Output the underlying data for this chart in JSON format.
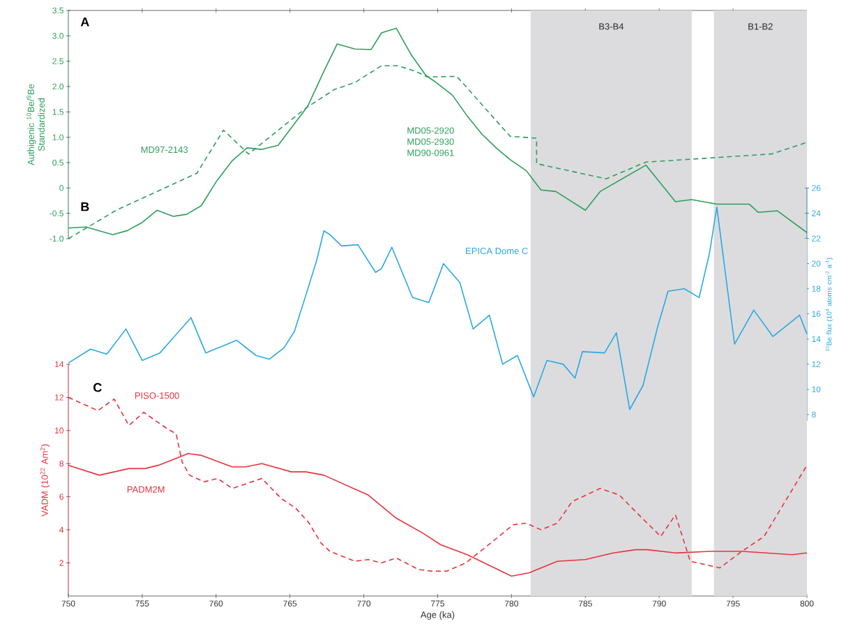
{
  "chart_data": [
    {
      "type": "line",
      "title": "A",
      "ylabel": "Authigenic $^{10}$Be/$^{9}$Be Standardized",
      "xlim": [
        750,
        800
      ],
      "xticks": [
        755,
        760,
        765,
        770,
        775,
        780,
        785,
        790,
        795
      ],
      "tick_labels": "y",
      "ylim": [
        -1,
        3.5
      ],
      "yticks": [
        {
          "value": -1,
          "label": "-1.0"
        },
        -0.5,
        0,
        0.5,
        {
          "value": 1,
          "label": "1.0"
        },
        1.5,
        {
          "value": 2,
          "label": "2.0"
        },
        2.5,
        {
          "value": 3,
          "label": "3.0"
        },
        3.5
      ],
      "bands": [
        {
          "axis": "x",
          "from": 781.3,
          "to": 792.2,
          "label": "B3-B4",
          "color": "#dcdcdf"
        },
        {
          "axis": "x",
          "from": 793.7,
          "to": 800,
          "label": "B1-B2",
          "color": "#dcdcdf"
        }
      ],
      "series": [
        {
          "name": "MD97-2143",
          "color": "#2e9e5b",
          "line_style": "dashed",
          "x": [
            750,
            753.3,
            756,
            758.7,
            760.5,
            762.2,
            766.1,
            768,
            769.4,
            771.2,
            772.3,
            773.5,
            774.3,
            776.3,
            779.9,
            781.7,
            781.7,
            786.4,
            789.1,
            797.6,
            800
          ],
          "values": [
            -1.0,
            -0.43,
            -0.07,
            0.29,
            1.14,
            0.67,
            1.58,
            1.94,
            2.08,
            2.41,
            2.41,
            2.3,
            2.19,
            2.2,
            1.02,
            0.98,
            0.48,
            0.18,
            0.51,
            0.67,
            0.9
          ]
        },
        {
          "name": "MD05-2920 MD05-2930 MD90-0961",
          "color": "#2e9e5b",
          "line_style": "solid",
          "x": [
            750,
            751.2,
            753,
            754,
            755,
            756,
            757.1,
            758,
            759,
            760,
            761.1,
            762.1,
            763.1,
            764.2,
            766.2,
            767.3,
            768.2,
            769.4,
            770.5,
            771.2,
            772.2,
            773.2,
            774.2,
            774.8,
            776,
            777,
            778,
            779,
            779.9,
            781,
            782,
            783,
            785,
            786,
            789.1,
            791.1,
            792.2,
            793.9,
            796.1,
            796.7,
            798,
            800
          ],
          "values": [
            -0.79,
            -0.77,
            -0.92,
            -0.84,
            -0.68,
            -0.44,
            -0.56,
            -0.52,
            -0.35,
            0.12,
            0.54,
            0.79,
            0.76,
            0.84,
            1.61,
            2.3,
            2.84,
            2.74,
            2.73,
            3.06,
            3.15,
            2.63,
            2.22,
            2.1,
            1.83,
            1.42,
            1.06,
            0.78,
            0.56,
            0.34,
            -0.04,
            -0.07,
            -0.44,
            -0.07,
            0.45,
            -0.27,
            -0.23,
            -0.32,
            -0.32,
            -0.48,
            -0.45,
            -0.88
          ]
        }
      ]
    },
    {
      "type": "line",
      "title": "B",
      "y2label": "$^{10}$Be flux (10$^{4}$ atoms cm$^{-2}$ a$^{-1}$)",
      "xlim": [
        750,
        800
      ],
      "tick_labels": "y",
      "y2lim": [
        7.5,
        26
      ],
      "y2ticks": [
        8,
        10,
        12,
        14,
        16,
        18,
        20,
        22,
        24,
        26
      ],
      "bands": [
        {
          "axis": "x",
          "from": 781.3,
          "to": 792.2,
          "color": "#dcdcdf"
        },
        {
          "axis": "x",
          "from": 793.7,
          "to": 800,
          "color": "#dcdcdf"
        }
      ],
      "series": [
        {
          "name": "EPICA Dome C",
          "color": "#29a9e0",
          "axis": "y2",
          "line_style": "solid",
          "x": [
            750,
            751.5,
            752.6,
            753.9,
            755,
            756.2,
            758.3,
            759.3,
            761.4,
            762.7,
            763.6,
            764.6,
            765.3,
            766,
            766.8,
            767.3,
            767.7,
            768.5,
            769.6,
            770.8,
            771.2,
            771.9,
            773.3,
            774.4,
            775.4,
            776.5,
            777.4,
            778.5,
            779.4,
            780.4,
            781.5,
            782.4,
            783.5,
            784.3,
            784.8,
            786.3,
            787.1,
            788,
            788.9,
            789.9,
            790.6,
            791.7,
            792.7,
            793.4,
            793.9,
            795.1,
            796.4,
            797.7,
            799.5,
            800
          ],
          "values": [
            12.1,
            13.2,
            12.8,
            14.8,
            12.3,
            12.9,
            15.7,
            12.9,
            13.9,
            12.7,
            12.4,
            13.3,
            14.6,
            17.2,
            20.2,
            22.6,
            22.3,
            21.4,
            21.5,
            19.3,
            19.6,
            21.3,
            17.3,
            16.9,
            20.0,
            18.5,
            14.8,
            15.9,
            12.0,
            12.7,
            9.4,
            12.3,
            12.0,
            10.9,
            13.0,
            12.9,
            14.5,
            8.4,
            10.3,
            15.0,
            17.8,
            18.0,
            17.3,
            20.8,
            24.5,
            13.6,
            16.3,
            14.2,
            15.9,
            14.4
          ]
        }
      ]
    },
    {
      "type": "line",
      "title": "C",
      "xlabel": "Age (ka)",
      "ylabel": "VADM (10$^{22}$ Am$^{2}$)",
      "xlim": [
        750,
        800
      ],
      "xticks": [
        750,
        755,
        760,
        765,
        770,
        775,
        780,
        785,
        790,
        795,
        800
      ],
      "ylim": [
        0,
        14
      ],
      "yticks": [
        2,
        4,
        6,
        8,
        10,
        12,
        14
      ],
      "bands": [
        {
          "axis": "x",
          "from": 781.3,
          "to": 792.2,
          "color": "#dcdcdf"
        },
        {
          "axis": "x",
          "from": 793.7,
          "to": 800,
          "color": "#dcdcdf"
        }
      ],
      "series": [
        {
          "name": "PISO-1500",
          "color": "#e8323c",
          "line_style": "dashed",
          "x": [
            750,
            751,
            752,
            753.1,
            754.1,
            755.1,
            756.7,
            757.3,
            757.7,
            758.2,
            759.2,
            760.1,
            761.1,
            763.1,
            764.4,
            765.4,
            766.3,
            767.1,
            767.7,
            769.4,
            770.3,
            771.2,
            772.2,
            773.7,
            774.6,
            775.6,
            776.9,
            778.6,
            780.1,
            781,
            782,
            783.1,
            784.1,
            786,
            787.3,
            788.4,
            790.1,
            791.1,
            792.1,
            794.1,
            795.6,
            797.1,
            800
          ],
          "values": [
            12.0,
            11.6,
            11.2,
            11.9,
            10.3,
            11.1,
            10.1,
            9.8,
            8.1,
            7.3,
            6.9,
            7.1,
            6.5,
            7.1,
            5.9,
            5.3,
            4.4,
            3.2,
            2.7,
            2.1,
            2.2,
            2.0,
            2.3,
            1.6,
            1.5,
            1.5,
            2.0,
            3.2,
            4.3,
            4.4,
            4.0,
            4.4,
            5.7,
            6.5,
            6.1,
            5.1,
            3.6,
            4.9,
            2.1,
            1.7,
            2.7,
            3.6,
            7.9
          ]
        },
        {
          "name": "PADM2M",
          "color": "#e8323c",
          "line_style": "solid",
          "x": [
            750,
            752.1,
            754.1,
            755.2,
            756.1,
            758.1,
            759,
            761.1,
            762,
            763.1,
            765.1,
            766.1,
            767.3,
            770.3,
            772.2,
            774,
            775.2,
            777,
            780,
            781.2,
            783.1,
            785,
            786.9,
            788.4,
            789.2,
            791.1,
            793.5,
            795.6,
            799,
            800
          ],
          "values": [
            7.9,
            7.3,
            7.7,
            7.7,
            7.9,
            8.6,
            8.5,
            7.8,
            7.8,
            8.0,
            7.5,
            7.5,
            7.3,
            6.1,
            4.7,
            3.8,
            3.1,
            2.5,
            1.2,
            1.4,
            2.1,
            2.2,
            2.6,
            2.8,
            2.8,
            2.6,
            2.7,
            2.7,
            2.5,
            2.6
          ]
        }
      ]
    }
  ]
}
